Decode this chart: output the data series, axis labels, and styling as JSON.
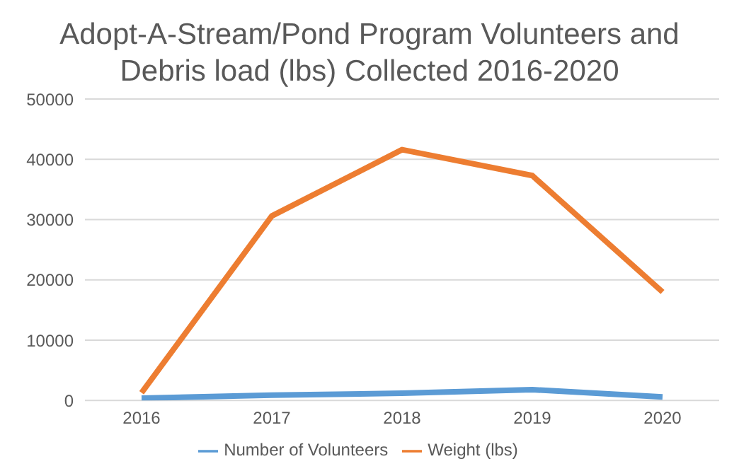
{
  "chart_data": {
    "type": "line",
    "title": "Adopt-A-Stream/Pond Program Volunteers and Debris load (lbs) Collected 2016-2020",
    "categories": [
      "2016",
      "2017",
      "2018",
      "2019",
      "2020"
    ],
    "series": [
      {
        "name": "Number of Volunteers",
        "color": "#5b9bd5",
        "values": [
          400,
          900,
          1200,
          1800,
          600
        ]
      },
      {
        "name": "Weight (lbs)",
        "color": "#ed7d31",
        "values": [
          1300,
          30600,
          41600,
          37300,
          18000
        ]
      }
    ],
    "ylim": [
      0,
      50000
    ],
    "yticks": [
      0,
      10000,
      20000,
      30000,
      40000,
      50000
    ],
    "grid": "y",
    "legend": "bottom",
    "marker": "none",
    "line_style": "solid"
  }
}
